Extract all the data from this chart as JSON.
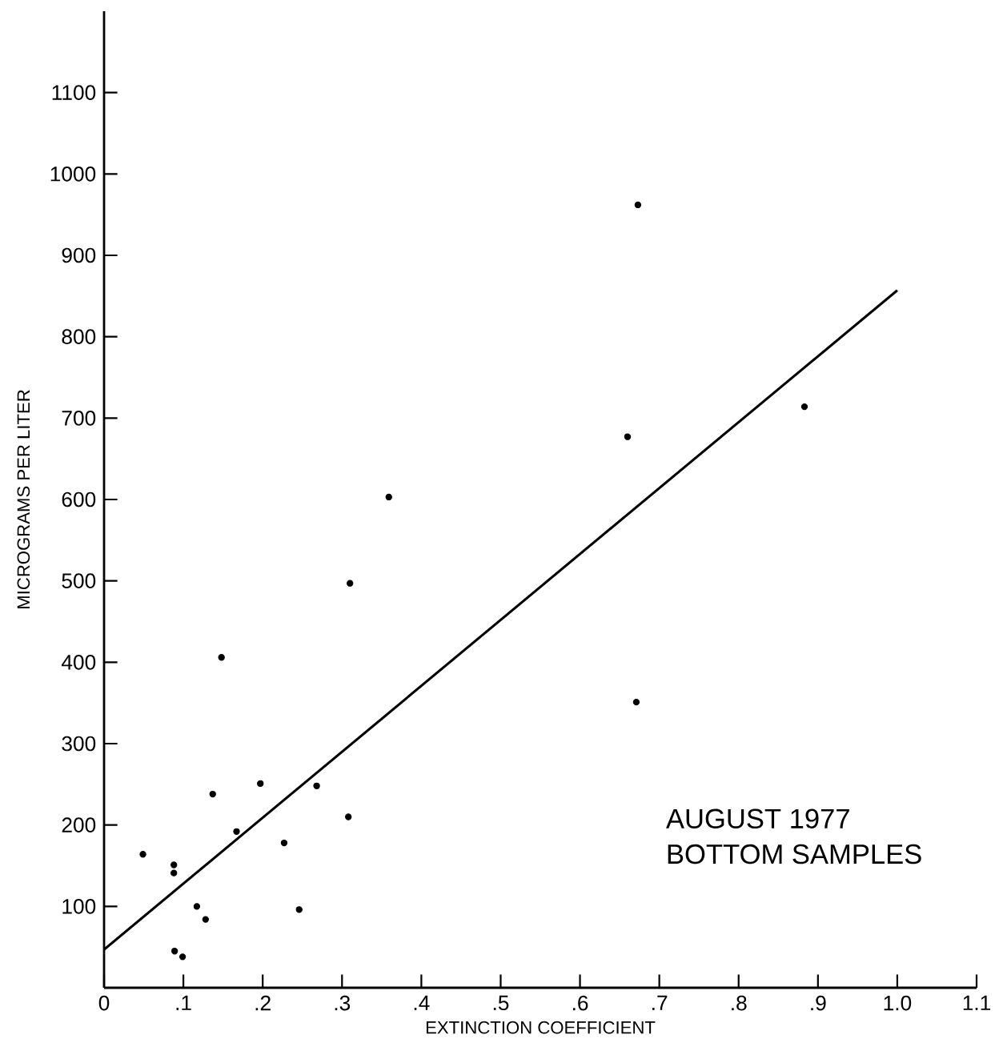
{
  "chart_data": {
    "type": "scatter",
    "xlabel": "EXTINCTION COEFFICIENT",
    "ylabel": "MICROGRAMS PER LITER",
    "annotations": [
      "AUGUST 1977",
      "BOTTOM SAMPLES"
    ],
    "xlim": [
      0,
      1.1
    ],
    "ylim": [
      0,
      1200
    ],
    "xticks": [
      0,
      {
        "value": 0.1,
        "label": ".1"
      },
      {
        "value": 0.2,
        "label": ".2"
      },
      {
        "value": 0.3,
        "label": ".3"
      },
      {
        "value": 0.4,
        "label": ".4"
      },
      {
        "value": 0.5,
        "label": ".5"
      },
      {
        "value": 0.6,
        "label": ".6"
      },
      {
        "value": 0.7,
        "label": ".7"
      },
      {
        "value": 0.8,
        "label": ".8"
      },
      {
        "value": 0.9,
        "label": ".9"
      },
      {
        "value": 1.0,
        "label": "1.0"
      },
      {
        "value": 1.1,
        "label": "1.1"
      }
    ],
    "yticks": [
      100,
      200,
      300,
      400,
      500,
      600,
      700,
      800,
      900,
      1000,
      1100
    ],
    "series": [
      {
        "marker": "circle",
        "color": "#000000",
        "x": [
          0.049,
          0.088,
          0.088,
          0.089,
          0.099,
          0.117,
          0.128,
          0.137,
          0.148,
          0.167,
          0.197,
          0.227,
          0.246,
          0.268,
          0.308,
          0.31,
          0.359,
          0.66,
          0.671,
          0.673,
          0.883
        ],
        "values": [
          164,
          151,
          141,
          45,
          38,
          100,
          84,
          238,
          406,
          192,
          251,
          178,
          96,
          248,
          210,
          497,
          603,
          677,
          351,
          962,
          714
        ]
      },
      {
        "type": "line",
        "marker": "none",
        "color": "#000000",
        "x": [
          0,
          1.0
        ],
        "values": [
          47,
          857
        ]
      }
    ]
  }
}
